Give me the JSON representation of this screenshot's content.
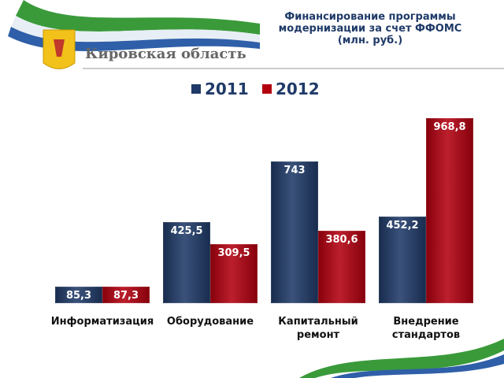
{
  "header": {
    "region": "Кировская область"
  },
  "chart_data": {
    "type": "bar",
    "title": [
      "Финансирование программы",
      "модернизации за счет ФФОМС",
      "(млн. руб.)"
    ],
    "categories": [
      "Информатизация",
      "Оборудование",
      "Капитальный ремонт",
      "Внедрение стандартов"
    ],
    "series": [
      {
        "name": "2011",
        "color": "#1f3a68",
        "values": [
          85.3,
          425.5,
          743,
          452.2
        ],
        "value_labels": [
          "85,3",
          "425,5",
          "743",
          "452,2"
        ]
      },
      {
        "name": "2012",
        "color": "#b3000f",
        "values": [
          87.3,
          309.5,
          380.6,
          968.8
        ],
        "value_labels": [
          "87,3",
          "309,5",
          "380,6",
          "968,8"
        ]
      }
    ]
  }
}
